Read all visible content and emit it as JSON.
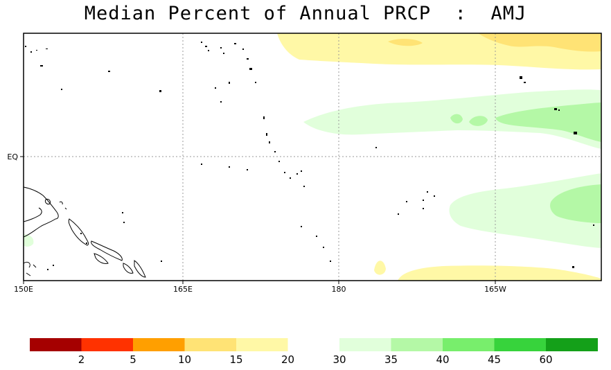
{
  "title": "Median Percent of Annual PRCP  :  AMJ",
  "map": {
    "x_ticks": [
      "150E",
      "165E",
      "180",
      "165W"
    ],
    "y_ticks": [
      "EQ"
    ]
  },
  "colorbar": {
    "colors": [
      "#a50000",
      "#ff3200",
      "#ff9f00",
      "#ffe375",
      "#fff8a6",
      "#ffffff",
      "#e1ffdb",
      "#b4f8a6",
      "#78ee6c",
      "#37d33c",
      "#14a019"
    ],
    "labels": [
      "2",
      "5",
      "10",
      "15",
      "20",
      "30",
      "35",
      "40",
      "45",
      "60"
    ]
  },
  "field_colors": {
    "light_yellow": "#fff8a6",
    "yellow": "#ffe375",
    "light_green": "#e1ffdb",
    "green": "#b4f8a6"
  }
}
